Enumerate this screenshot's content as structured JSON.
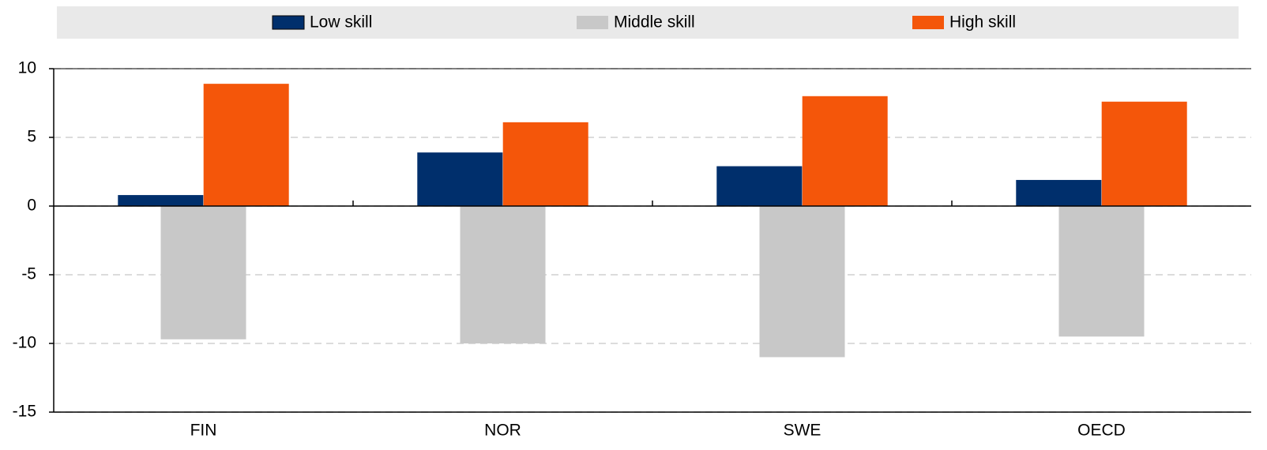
{
  "chart_data": {
    "type": "bar",
    "categories": [
      "FIN",
      "NOR",
      "SWE",
      "OECD"
    ],
    "series": [
      {
        "name": "Low skill",
        "color": "#002f6c",
        "values": [
          0.8,
          3.9,
          2.9,
          1.9
        ]
      },
      {
        "name": "Middle skill",
        "color": "#c8c8c8",
        "values": [
          -9.7,
          -10.0,
          -11.0,
          -9.5
        ]
      },
      {
        "name": "High skill",
        "color": "#f4560a",
        "values": [
          8.9,
          6.1,
          8.0,
          7.6
        ]
      }
    ],
    "ylim": [
      -15,
      10
    ],
    "yticks": [
      -15,
      -10,
      -5,
      0,
      5,
      10
    ],
    "grid": true,
    "legend": "top"
  }
}
